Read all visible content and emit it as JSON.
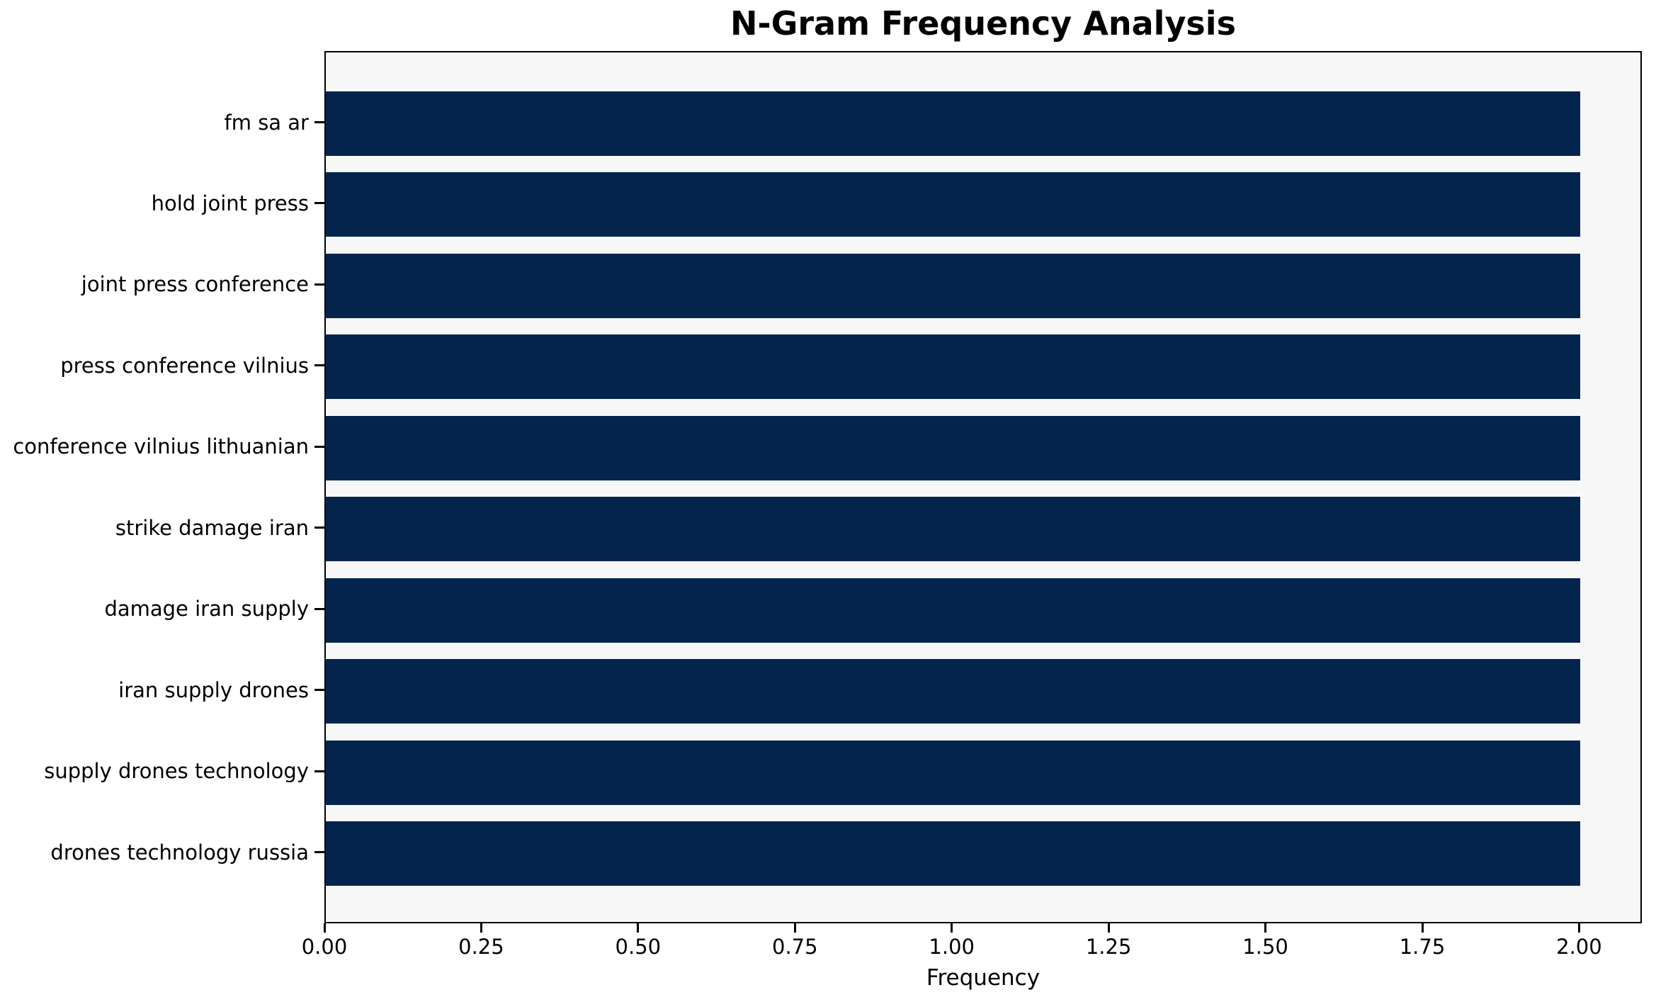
{
  "chart_data": {
    "type": "bar",
    "orientation": "horizontal",
    "title": "N-Gram Frequency Analysis",
    "xlabel": "Frequency",
    "categories": [
      "fm sa ar",
      "hold joint press",
      "joint press conference",
      "press conference vilnius",
      "conference vilnius lithuanian",
      "strike damage iran",
      "damage iran supply",
      "iran supply drones",
      "supply drones technology",
      "drones technology russia"
    ],
    "values": [
      2,
      2,
      2,
      2,
      2,
      2,
      2,
      2,
      2,
      2
    ],
    "xlim": [
      0,
      2.1
    ],
    "xticks": {
      "values": [
        0,
        0.25,
        0.5,
        0.75,
        1.0,
        1.25,
        1.5,
        1.75,
        2.0
      ],
      "labels": [
        "0.00",
        "0.25",
        "0.50",
        "0.75",
        "1.00",
        "1.25",
        "1.50",
        "1.75",
        "2.00"
      ]
    },
    "grid": false,
    "colors": {
      "bar": "#03244d",
      "plot_bg": "#f7f7f7",
      "figure_bg": "#ffffff",
      "axis": "#000000",
      "text": "#000000"
    }
  }
}
